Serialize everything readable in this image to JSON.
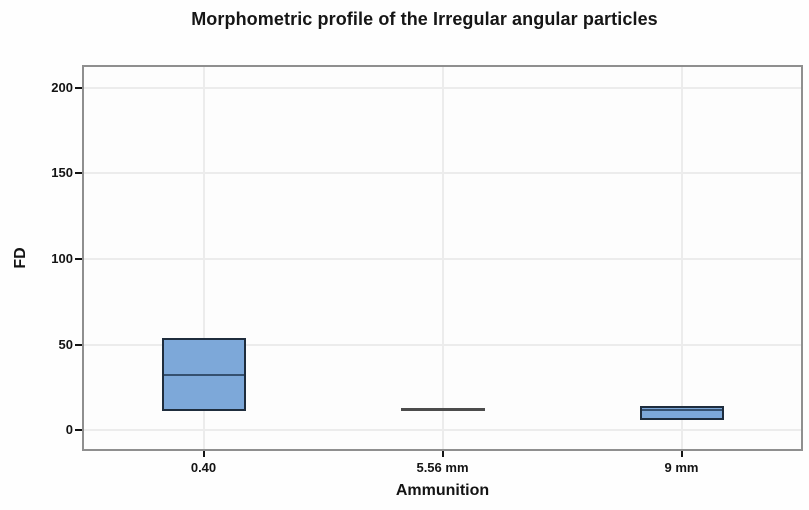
{
  "chart_data": {
    "type": "boxplot",
    "title": "Morphometric profile of the Irregular angular particles",
    "xlabel": "Ammunition",
    "ylabel": "FD",
    "categories": [
      "0.40",
      "5.56 mm",
      "9 mm"
    ],
    "y_ticks": [
      0,
      50,
      100,
      150,
      200
    ],
    "ylim": [
      -11,
      212
    ],
    "grid": true,
    "legend": false,
    "boxes": [
      {
        "category": "0.40",
        "whisker_low": 11,
        "q1": 11,
        "median": 32,
        "q3": 54,
        "whisker_high": 54,
        "flat": false
      },
      {
        "category": "5.56 mm",
        "whisker_low": 12,
        "q1": 12,
        "median": 12,
        "q3": 12,
        "whisker_high": 12,
        "flat": true
      },
      {
        "category": "9 mm",
        "whisker_low": 6,
        "q1": 6,
        "median": 12,
        "q3": 14,
        "whisker_high": 14,
        "flat": false
      }
    ],
    "colors": {
      "box_fill": "#7da8d9",
      "box_border": "#1f2d3d",
      "median_line": "#35506f",
      "flat_line": "#4c4c4c",
      "grid_line": "#ececec",
      "panel_border": "#8f8f8f",
      "tick": "#141414",
      "text": "#161616",
      "background": "#fefefe"
    }
  }
}
